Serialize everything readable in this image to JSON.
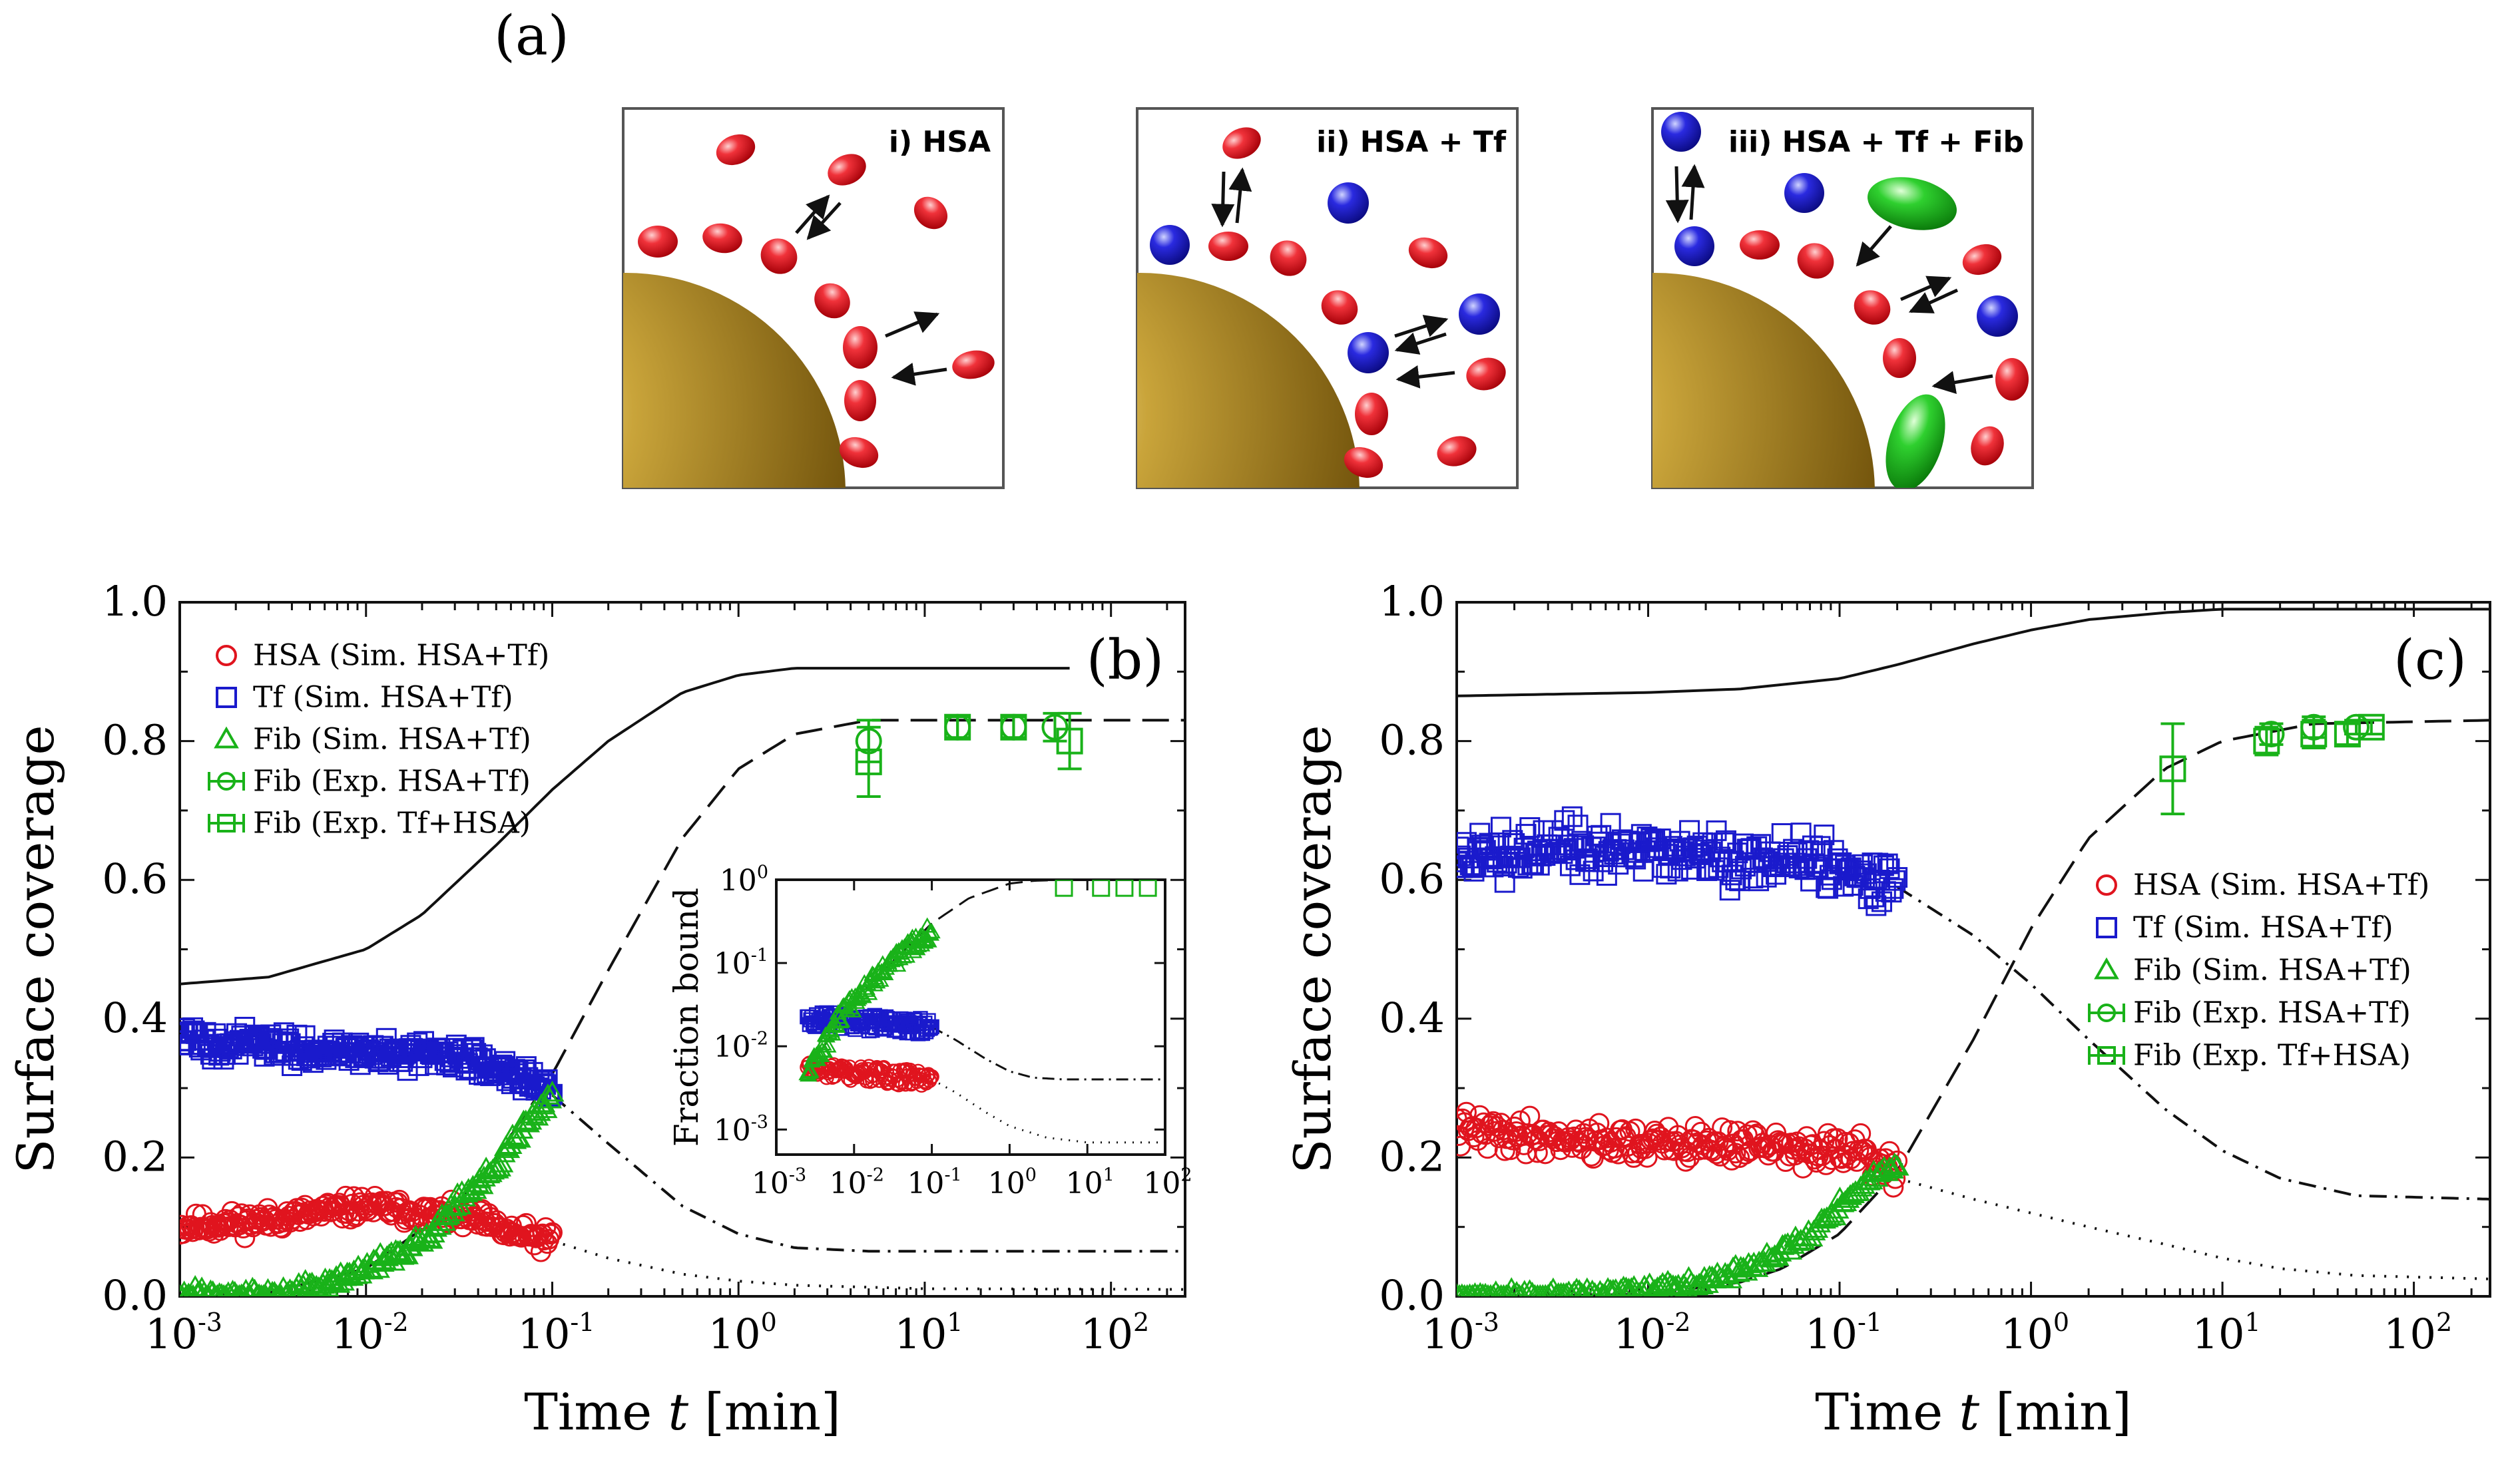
{
  "figure": {
    "panel_a_label": "(a)",
    "schematics": [
      {
        "label": "i) HSA"
      },
      {
        "label": "ii) HSA + Tf"
      },
      {
        "label": "iii) HSA + Tf + Fib"
      }
    ],
    "colors": {
      "hsa": "#e0141e",
      "tf": "#1a1acc",
      "fib": "#19b219",
      "nanoparticle": "#8a6a12",
      "line": "#111111"
    }
  },
  "chart_data": [
    {
      "type": "scatter",
      "panel_label": "(b)",
      "xlabel_prefix": "Time ",
      "xlabel_var": "t",
      "xlabel_suffix": " [min]",
      "ylabel": "Surface coverage",
      "xscale": "log",
      "xlim": [
        0.001,
        250
      ],
      "ylim": [
        0.0,
        1.0
      ],
      "xticks": [
        {
          "base": "10",
          "exp": "-3"
        },
        {
          "base": "10",
          "exp": "-2"
        },
        {
          "base": "10",
          "exp": "-1"
        },
        {
          "base": "10",
          "exp": "0"
        },
        {
          "base": "10",
          "exp": "1"
        },
        {
          "base": "10",
          "exp": "2"
        }
      ],
      "yticks": [
        "0.0",
        "0.2",
        "0.4",
        "0.6",
        "0.8",
        "1.0"
      ],
      "legend": [
        {
          "label": "HSA (Sim. HSA+Tf)",
          "marker": "circle",
          "color": "#e0141e"
        },
        {
          "label": "Tf (Sim. HSA+Tf)",
          "marker": "square",
          "color": "#1a1acc"
        },
        {
          "label": "Fib (Sim. HSA+Tf)",
          "marker": "triangle",
          "color": "#19b219"
        },
        {
          "label": "Fib (Exp. HSA+Tf)",
          "marker": "circle-err",
          "color": "#19b219"
        },
        {
          "label": "Fib (Exp. Tf+HSA)",
          "marker": "square-err",
          "color": "#19b219"
        }
      ],
      "sim_end": 0.1,
      "series": [
        {
          "name": "HSA (Sim. HSA+Tf)",
          "kind": "noisy",
          "x": [
            0.001,
            0.003,
            0.01,
            0.02,
            0.04,
            0.06,
            0.1
          ],
          "y": [
            0.1,
            0.11,
            0.13,
            0.12,
            0.11,
            0.09,
            0.08
          ],
          "noise": 0.012
        },
        {
          "name": "Tf (Sim. HSA+Tf)",
          "kind": "noisy",
          "x": [
            0.001,
            0.003,
            0.01,
            0.02,
            0.04,
            0.07,
            0.1
          ],
          "y": [
            0.37,
            0.36,
            0.35,
            0.35,
            0.34,
            0.32,
            0.29
          ],
          "noise": 0.015
        },
        {
          "name": "Fib (Sim. HSA+Tf)",
          "kind": "noisy",
          "x": [
            0.001,
            0.003,
            0.006,
            0.01,
            0.02,
            0.03,
            0.05,
            0.07,
            0.1
          ],
          "y": [
            0.0,
            0.0,
            0.02,
            0.04,
            0.08,
            0.13,
            0.19,
            0.24,
            0.29
          ],
          "noise": 0.008
        },
        {
          "name": "Total (Model)",
          "kind": "line",
          "style": "solid",
          "x": [
            0.001,
            0.003,
            0.01,
            0.02,
            0.05,
            0.1,
            0.2,
            0.5,
            1,
            2,
            5,
            60
          ],
          "y": [
            0.45,
            0.46,
            0.5,
            0.55,
            0.65,
            0.73,
            0.8,
            0.87,
            0.895,
            0.905,
            0.905,
            0.905
          ]
        },
        {
          "name": "Fib (Model)",
          "kind": "line",
          "style": "dash",
          "x": [
            0.001,
            0.003,
            0.01,
            0.03,
            0.05,
            0.1,
            0.2,
            0.5,
            1,
            2,
            5,
            250
          ],
          "y": [
            0.0,
            0.005,
            0.04,
            0.13,
            0.2,
            0.32,
            0.47,
            0.66,
            0.76,
            0.81,
            0.83,
            0.83
          ]
        },
        {
          "name": "Tf (Model)",
          "kind": "line",
          "style": "dashdot",
          "x": [
            0.1,
            0.2,
            0.5,
            1,
            2,
            5,
            250
          ],
          "y": [
            0.29,
            0.22,
            0.13,
            0.09,
            0.07,
            0.065,
            0.065
          ]
        },
        {
          "name": "HSA (Model)",
          "kind": "line",
          "style": "dot",
          "x": [
            0.1,
            0.2,
            0.5,
            1,
            2,
            10,
            250
          ],
          "y": [
            0.08,
            0.055,
            0.032,
            0.022,
            0.016,
            0.011,
            0.01
          ]
        },
        {
          "name": "Fib (Exp. HSA+Tf)",
          "kind": "errorbar",
          "marker": "circle",
          "x": [
            5,
            15,
            30,
            50
          ],
          "y": [
            0.8,
            0.82,
            0.82,
            0.82
          ],
          "err": [
            0.03,
            0.015,
            0.015,
            0.02
          ]
        },
        {
          "name": "Fib (Exp. Tf+HSA)",
          "kind": "errorbar",
          "marker": "square",
          "x": [
            5,
            15,
            30,
            60
          ],
          "y": [
            0.77,
            0.82,
            0.82,
            0.8
          ],
          "err": [
            0.05,
            0.015,
            0.015,
            0.04
          ]
        }
      ],
      "inset": {
        "ylabel": "Fraction bound",
        "xscale": "log",
        "yscale": "log",
        "xlim": [
          0.001,
          100
        ],
        "ylim": [
          0.0005,
          1
        ],
        "xticks": [
          {
            "base": "10",
            "exp": "-3"
          },
          {
            "base": "10",
            "exp": "-2"
          },
          {
            "base": "10",
            "exp": "-1"
          },
          {
            "base": "10",
            "exp": "0"
          },
          {
            "base": "10",
            "exp": "1"
          },
          {
            "base": "10",
            "exp": "2"
          }
        ],
        "yticks": [
          {
            "base": "10",
            "exp": "-3"
          },
          {
            "base": "10",
            "exp": "-2"
          },
          {
            "base": "10",
            "exp": "-1"
          },
          {
            "base": "10",
            "exp": "0"
          }
        ],
        "series": [
          {
            "name": "HSA",
            "kind": "noisy",
            "x": [
              0.0025,
              0.005,
              0.01,
              0.03,
              0.06,
              0.1
            ],
            "y": [
              0.0055,
              0.005,
              0.0048,
              0.0045,
              0.0042,
              0.004
            ],
            "noise": 0.0008
          },
          {
            "name": "Tf",
            "kind": "noisy",
            "x": [
              0.0025,
              0.005,
              0.01,
              0.03,
              0.06,
              0.1
            ],
            "y": [
              0.022,
              0.021,
              0.02,
              0.019,
              0.018,
              0.017
            ],
            "noise": 0.003
          },
          {
            "name": "Fib",
            "kind": "noisy",
            "x": [
              0.0025,
              0.004,
              0.006,
              0.01,
              0.02,
              0.04,
              0.07,
              0.1
            ],
            "y": [
              0.0045,
              0.01,
              0.02,
              0.035,
              0.07,
              0.13,
              0.2,
              0.25
            ],
            "noise": 0.015
          },
          {
            "name": "Fib (Model)",
            "kind": "line",
            "style": "dash",
            "x": [
              0.0025,
              0.01,
              0.03,
              0.1,
              0.3,
              1,
              2,
              5,
              100
            ],
            "y": [
              0.005,
              0.035,
              0.1,
              0.3,
              0.6,
              0.9,
              0.97,
              1.0,
              1.0
            ]
          },
          {
            "name": "Tf (Model)",
            "kind": "line",
            "style": "dashdot",
            "x": [
              0.1,
              0.2,
              0.5,
              1,
              2,
              5,
              100
            ],
            "y": [
              0.017,
              0.012,
              0.007,
              0.005,
              0.0042,
              0.004,
              0.004
            ]
          },
          {
            "name": "HSA (Model)",
            "kind": "line",
            "style": "dot",
            "x": [
              0.1,
              0.2,
              0.5,
              1,
              3,
              10,
              100
            ],
            "y": [
              0.004,
              0.0028,
              0.0016,
              0.0011,
              0.0008,
              0.0007,
              0.0007
            ]
          },
          {
            "name": "Fib (Exp.)",
            "kind": "errorbar",
            "marker": "square",
            "x": [
              5,
              15,
              30,
              60
            ],
            "y": [
              0.8,
              0.8,
              0.8,
              0.8
            ],
            "err": [
              0.05,
              0.05,
              0.05,
              0.05
            ]
          }
        ]
      }
    },
    {
      "type": "scatter",
      "panel_label": "(c)",
      "xlabel_prefix": "Time ",
      "xlabel_var": "t",
      "xlabel_suffix": " [min]",
      "ylabel": "Surface coverage",
      "xscale": "log",
      "xlim": [
        0.001,
        250
      ],
      "ylim": [
        0.0,
        1.0
      ],
      "xticks": [
        {
          "base": "10",
          "exp": "-3"
        },
        {
          "base": "10",
          "exp": "-2"
        },
        {
          "base": "10",
          "exp": "-1"
        },
        {
          "base": "10",
          "exp": "0"
        },
        {
          "base": "10",
          "exp": "1"
        },
        {
          "base": "10",
          "exp": "2"
        }
      ],
      "yticks": [
        "0.0",
        "0.2",
        "0.4",
        "0.6",
        "0.8",
        "1.0"
      ],
      "legend": [
        {
          "label": "HSA (Sim. HSA+Tf)",
          "marker": "circle",
          "color": "#e0141e"
        },
        {
          "label": "Tf (Sim. HSA+Tf)",
          "marker": "square",
          "color": "#1a1acc"
        },
        {
          "label": "Fib (Sim. HSA+Tf)",
          "marker": "triangle",
          "color": "#19b219"
        },
        {
          "label": "Fib (Exp. HSA+Tf)",
          "marker": "circle-err",
          "color": "#19b219"
        },
        {
          "label": "Fib (Exp. Tf+HSA)",
          "marker": "square-err",
          "color": "#19b219"
        }
      ],
      "sim_end": 0.2,
      "series": [
        {
          "name": "HSA (Sim. HSA+Tf)",
          "kind": "noisy",
          "x": [
            0.001,
            0.003,
            0.01,
            0.03,
            0.06,
            0.1,
            0.15,
            0.2
          ],
          "y": [
            0.24,
            0.23,
            0.22,
            0.22,
            0.21,
            0.21,
            0.2,
            0.17
          ],
          "noise": 0.018
        },
        {
          "name": "Tf (Sim. HSA+Tf)",
          "kind": "noisy",
          "x": [
            0.001,
            0.003,
            0.01,
            0.03,
            0.06,
            0.1,
            0.15,
            0.2
          ],
          "y": [
            0.63,
            0.64,
            0.64,
            0.63,
            0.63,
            0.62,
            0.61,
            0.59
          ],
          "noise": 0.028
        },
        {
          "name": "Fib (Sim. HSA+Tf)",
          "kind": "noisy",
          "x": [
            0.001,
            0.003,
            0.01,
            0.02,
            0.04,
            0.07,
            0.1,
            0.15,
            0.2
          ],
          "y": [
            0.0,
            0.0,
            0.01,
            0.02,
            0.05,
            0.09,
            0.13,
            0.17,
            0.19
          ],
          "noise": 0.006
        },
        {
          "name": "Total (Model)",
          "kind": "line",
          "style": "solid",
          "x": [
            0.001,
            0.01,
            0.03,
            0.1,
            0.2,
            0.5,
            1,
            2,
            5,
            10,
            20,
            250
          ],
          "y": [
            0.865,
            0.87,
            0.875,
            0.89,
            0.91,
            0.94,
            0.96,
            0.975,
            0.985,
            0.99,
            0.99,
            0.99
          ]
        },
        {
          "name": "Fib (Model)",
          "kind": "line",
          "style": "dash",
          "x": [
            0.001,
            0.01,
            0.03,
            0.05,
            0.1,
            0.2,
            0.5,
            1,
            2,
            5,
            10,
            30,
            250
          ],
          "y": [
            0.0,
            0.003,
            0.02,
            0.04,
            0.09,
            0.18,
            0.37,
            0.53,
            0.66,
            0.76,
            0.8,
            0.825,
            0.83
          ]
        },
        {
          "name": "Tf (Model)",
          "kind": "line",
          "style": "dashdot",
          "x": [
            0.2,
            0.5,
            1,
            2,
            5,
            10,
            20,
            50,
            250
          ],
          "y": [
            0.59,
            0.52,
            0.45,
            0.37,
            0.27,
            0.21,
            0.17,
            0.145,
            0.14
          ]
        },
        {
          "name": "HSA (Model)",
          "kind": "line",
          "style": "dot",
          "x": [
            0.2,
            0.5,
            1,
            2,
            5,
            10,
            20,
            50,
            250
          ],
          "y": [
            0.17,
            0.14,
            0.12,
            0.1,
            0.075,
            0.055,
            0.04,
            0.03,
            0.025
          ]
        },
        {
          "name": "Fib (Exp. HSA+Tf)",
          "kind": "errorbar",
          "marker": "circle",
          "x": [
            18,
            30,
            50
          ],
          "y": [
            0.81,
            0.82,
            0.82
          ],
          "err": [
            0.015,
            0.015,
            0.01
          ]
        },
        {
          "name": "Fib (Exp. Tf+HSA)",
          "kind": "errorbar",
          "marker": "square",
          "x": [
            5.5,
            17,
            30,
            45,
            60
          ],
          "y": [
            0.76,
            0.8,
            0.81,
            0.81,
            0.82
          ],
          "err": [
            0.065,
            0.02,
            0.02,
            0.015,
            0.01
          ]
        }
      ]
    }
  ]
}
